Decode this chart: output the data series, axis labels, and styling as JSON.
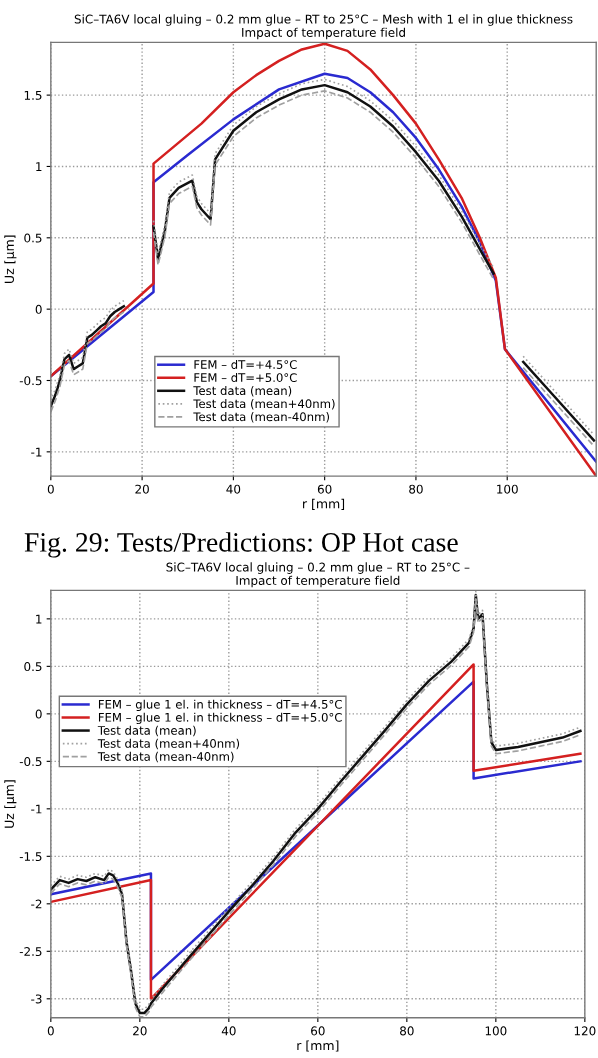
{
  "chart_data": [
    {
      "type": "line",
      "title": "SiC–TA6V local gluing – 0.2 mm glue – RT to 25°C – Mesh with 1 el in glue thickness\nImpact of temperature field",
      "xlabel": "r [mm]",
      "ylabel": "Uz [µm]",
      "xlim": [
        0,
        119.5
      ],
      "ylim": [
        -1.17,
        1.87
      ],
      "xticks": [
        0,
        20,
        40,
        60,
        80,
        100
      ],
      "yticks": [
        -1,
        -0.5,
        0,
        0.5,
        1,
        1.5
      ],
      "grid": true,
      "legend": "bottom left",
      "marker": "none",
      "annotations": [
        "Fig. 29: Tests/Predictions: OP Hot case"
      ],
      "series": [
        {
          "name": "FEM – dT=+4.5°C",
          "color": "#2a2ad0",
          "line_style": "solid",
          "x": [
            0,
            22.5,
            22.5,
            30,
            40,
            50,
            60,
            65,
            70,
            75,
            80,
            85,
            90,
            94,
            97.5,
            99.5,
            119.5
          ],
          "values": [
            -0.47,
            0.12,
            0.89,
            1.08,
            1.33,
            1.54,
            1.65,
            1.62,
            1.52,
            1.38,
            1.2,
            0.98,
            0.72,
            0.47,
            0.2,
            -0.28,
            -1.07
          ]
        },
        {
          "name": "FEM – dT=+5.0°C",
          "color": "#d42020",
          "line_style": "solid",
          "x": [
            0,
            22.5,
            22.5,
            33,
            40,
            45,
            50,
            55,
            60,
            65,
            70,
            75,
            80,
            85,
            90,
            94,
            97.5,
            99.5,
            119.5
          ],
          "values": [
            -0.47,
            0.18,
            1.02,
            1.3,
            1.52,
            1.64,
            1.74,
            1.82,
            1.86,
            1.81,
            1.68,
            1.5,
            1.3,
            1.05,
            0.78,
            0.5,
            0.22,
            -0.28,
            -1.17
          ]
        },
        {
          "name": "Test data (mean)",
          "color": "#111111",
          "line_style": "solid",
          "x": [
            0,
            1,
            2,
            3,
            4,
            5,
            6,
            7,
            8,
            9,
            10,
            11,
            12,
            13,
            14,
            15,
            16,
            17,
            22.5,
            23.5,
            25,
            26,
            28,
            31,
            32,
            33,
            35,
            36,
            40,
            45,
            50,
            55,
            60,
            65,
            70,
            75,
            80,
            85,
            90,
            94,
            97,
            98,
            103.5,
            110,
            119
          ],
          "values": [
            -0.68,
            -0.6,
            -0.5,
            -0.35,
            -0.32,
            -0.42,
            -0.4,
            -0.38,
            -0.2,
            -0.18,
            -0.15,
            -0.12,
            -0.1,
            -0.05,
            -0.02,
            0.0,
            0.02,
            null,
            0.58,
            0.35,
            0.55,
            0.78,
            0.85,
            0.9,
            0.75,
            0.7,
            0.63,
            1.05,
            1.25,
            1.38,
            1.47,
            1.54,
            1.57,
            1.52,
            1.42,
            1.28,
            1.1,
            0.9,
            0.65,
            0.42,
            0.25,
            null,
            -0.37,
            -0.6,
            -0.92
          ]
        },
        {
          "name": "Test data (mean+40nm)",
          "color": "#a0a0a0",
          "line_style": "dotted",
          "x": [
            0,
            1,
            2,
            3,
            4,
            5,
            6,
            7,
            8,
            9,
            10,
            11,
            12,
            13,
            14,
            15,
            16,
            17,
            22.5,
            23.5,
            25,
            26,
            28,
            31,
            32,
            33,
            35,
            36,
            40,
            45,
            50,
            55,
            60,
            65,
            70,
            75,
            80,
            85,
            90,
            94,
            97,
            98,
            103.5,
            110,
            119
          ],
          "values": [
            -0.64,
            -0.56,
            -0.46,
            -0.31,
            -0.28,
            -0.38,
            -0.36,
            -0.34,
            -0.16,
            -0.14,
            -0.11,
            -0.08,
            -0.06,
            -0.01,
            0.02,
            0.04,
            0.06,
            null,
            0.62,
            0.39,
            0.59,
            0.82,
            0.89,
            0.94,
            0.79,
            0.74,
            0.67,
            1.09,
            1.29,
            1.42,
            1.51,
            1.58,
            1.61,
            1.56,
            1.46,
            1.32,
            1.14,
            0.94,
            0.69,
            0.46,
            0.29,
            null,
            -0.33,
            -0.56,
            -0.88
          ]
        },
        {
          "name": "Test data (mean-40nm)",
          "color": "#a0a0a0",
          "line_style": "dashed",
          "x": [
            0,
            1,
            2,
            3,
            4,
            5,
            6,
            7,
            8,
            9,
            10,
            11,
            12,
            13,
            14,
            15,
            16,
            17,
            22.5,
            23.5,
            25,
            26,
            28,
            31,
            32,
            33,
            35,
            36,
            40,
            45,
            50,
            55,
            60,
            65,
            70,
            75,
            80,
            85,
            90,
            94,
            97,
            98,
            103.5,
            110,
            119
          ],
          "values": [
            -0.72,
            -0.64,
            -0.54,
            -0.39,
            -0.36,
            -0.46,
            -0.44,
            -0.42,
            -0.24,
            -0.22,
            -0.19,
            -0.16,
            -0.14,
            -0.09,
            -0.06,
            -0.04,
            -0.02,
            null,
            0.54,
            0.31,
            0.51,
            0.74,
            0.81,
            0.86,
            0.71,
            0.66,
            0.59,
            1.01,
            1.21,
            1.34,
            1.43,
            1.5,
            1.53,
            1.48,
            1.38,
            1.24,
            1.06,
            0.86,
            0.61,
            0.38,
            0.21,
            null,
            -0.41,
            -0.64,
            -0.96
          ]
        }
      ]
    },
    {
      "type": "line",
      "title": "SiC–TA6V local gluing – 0.2 mm glue – RT to 25°C –\nImpact of temperature field",
      "xlabel": "r [mm]",
      "ylabel": "Uz [µm]",
      "xlim": [
        0,
        120
      ],
      "ylim": [
        -3.2,
        1.3
      ],
      "xticks": [
        0,
        20,
        40,
        60,
        80,
        100,
        120
      ],
      "yticks": [
        -3,
        -2.5,
        -2,
        -1.5,
        -1,
        -0.5,
        0,
        0.5,
        1
      ],
      "grid": true,
      "legend": "left",
      "marker": "none",
      "series": [
        {
          "name": "FEM – glue 1 el. in thickness – dT=+4.5°C",
          "color": "#2a2ad0",
          "line_style": "solid",
          "x": [
            0,
            22.5,
            22.5,
            95,
            95,
            119
          ],
          "values": [
            -1.9,
            -1.68,
            -2.8,
            0.34,
            -0.68,
            -0.5
          ]
        },
        {
          "name": "FEM – glue 1 el. in thickness – dT=+5.0°C",
          "color": "#d42020",
          "line_style": "solid",
          "x": [
            0,
            22.5,
            22.5,
            95,
            95,
            119
          ],
          "values": [
            -1.98,
            -1.75,
            -3.0,
            0.52,
            -0.6,
            -0.42
          ]
        },
        {
          "name": "Test data (mean)",
          "color": "#111111",
          "line_style": "solid",
          "x": [
            0,
            1,
            2,
            4,
            6,
            8,
            10,
            12,
            13,
            14,
            15,
            16,
            17,
            18,
            19,
            20,
            21,
            22,
            22.5,
            25,
            30,
            35,
            40,
            45,
            50,
            55,
            60,
            65,
            70,
            75,
            80,
            85,
            90,
            92,
            94,
            95,
            95.5,
            96,
            97,
            98,
            99,
            100,
            105,
            110,
            115,
            119
          ],
          "values": [
            -1.85,
            -1.8,
            -1.75,
            -1.78,
            -1.74,
            -1.76,
            -1.72,
            -1.75,
            -1.68,
            -1.7,
            -1.78,
            -1.9,
            -2.4,
            -2.7,
            -3.05,
            -3.15,
            -3.15,
            -3.1,
            -3.05,
            -2.9,
            -2.62,
            -2.35,
            -2.08,
            -1.82,
            -1.55,
            -1.25,
            -1.0,
            -0.72,
            -0.45,
            -0.18,
            0.1,
            0.35,
            0.55,
            0.65,
            0.75,
            0.9,
            1.25,
            1.0,
            1.05,
            0.3,
            -0.3,
            -0.38,
            -0.35,
            -0.3,
            -0.25,
            -0.18
          ]
        },
        {
          "name": "Test data (mean+40nm)",
          "color": "#a0a0a0",
          "line_style": "dotted",
          "x": [
            0,
            1,
            2,
            4,
            6,
            8,
            10,
            12,
            13,
            14,
            15,
            16,
            17,
            18,
            19,
            20,
            21,
            22,
            22.5,
            25,
            30,
            35,
            40,
            45,
            50,
            55,
            60,
            65,
            70,
            75,
            80,
            85,
            90,
            92,
            94,
            95,
            95.5,
            96,
            97,
            98,
            99,
            100,
            105,
            110,
            115,
            119
          ],
          "values": [
            -1.81,
            -1.76,
            -1.71,
            -1.74,
            -1.7,
            -1.72,
            -1.68,
            -1.71,
            -1.64,
            -1.66,
            -1.74,
            -1.86,
            -2.36,
            -2.66,
            -3.01,
            -3.11,
            -3.11,
            -3.06,
            -3.01,
            -2.86,
            -2.58,
            -2.31,
            -2.04,
            -1.78,
            -1.51,
            -1.21,
            -0.96,
            -0.68,
            -0.41,
            -0.14,
            0.14,
            0.39,
            0.59,
            0.69,
            0.79,
            0.94,
            1.29,
            1.04,
            1.09,
            0.34,
            -0.26,
            -0.34,
            -0.31,
            -0.26,
            -0.21,
            -0.14
          ]
        },
        {
          "name": "Test data (mean-40nm)",
          "color": "#a0a0a0",
          "line_style": "dashed",
          "x": [
            0,
            1,
            2,
            4,
            6,
            8,
            10,
            12,
            13,
            14,
            15,
            16,
            17,
            18,
            19,
            20,
            21,
            22,
            22.5,
            25,
            30,
            35,
            40,
            45,
            50,
            55,
            60,
            65,
            70,
            75,
            80,
            85,
            90,
            92,
            94,
            95,
            95.5,
            96,
            97,
            98,
            99,
            100,
            105,
            110,
            115,
            119
          ],
          "values": [
            -1.89,
            -1.84,
            -1.79,
            -1.82,
            -1.78,
            -1.8,
            -1.76,
            -1.79,
            -1.72,
            -1.74,
            -1.82,
            -1.94,
            -2.44,
            -2.74,
            -3.09,
            -3.19,
            -3.19,
            -3.14,
            -3.09,
            -2.94,
            -2.66,
            -2.39,
            -2.12,
            -1.86,
            -1.59,
            -1.29,
            -1.04,
            -0.76,
            -0.49,
            -0.22,
            0.06,
            0.31,
            0.51,
            0.61,
            0.71,
            0.86,
            1.21,
            0.96,
            1.01,
            0.26,
            -0.34,
            -0.42,
            -0.39,
            -0.34,
            -0.29,
            -0.22
          ]
        }
      ]
    }
  ]
}
